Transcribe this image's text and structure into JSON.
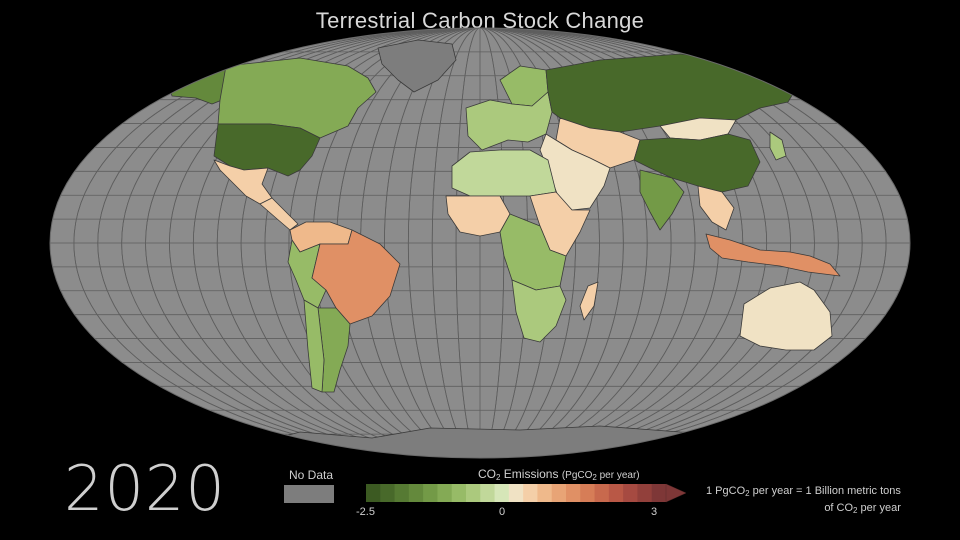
{
  "title": "Terrestrial Carbon Stock Change",
  "year": "2020",
  "legend": {
    "no_data_label": "No Data",
    "title_prefix": "CO",
    "title_sub": "2",
    "title_suffix": " Emissions ",
    "unit_prefix": "(PgCO",
    "unit_sub": "2",
    "unit_suffix": " per year)",
    "ticks": [
      "-2.5",
      "0",
      "3"
    ],
    "range": [
      -2.5,
      3
    ],
    "colors": [
      "#3c5a22",
      "#48692a",
      "#567a33",
      "#64893c",
      "#739a47",
      "#84aa55",
      "#97bb67",
      "#abc97d",
      "#c1d89a",
      "#d6e6b8",
      "#f0e2c4",
      "#f4cfa8",
      "#efb98b",
      "#e8a476",
      "#e09065",
      "#d67d57",
      "#c8694d",
      "#b95846",
      "#a64a41",
      "#92403b",
      "#7e3737"
    ]
  },
  "note": {
    "line1_prefix": "1 PgCO",
    "line1_sub": "2",
    "line1_suffix": " per year = 1 Billion metric tons",
    "line2_prefix": "of CO",
    "line2_sub": "2",
    "line2_suffix": " per year"
  },
  "colors": {
    "background": "#000000",
    "ocean": "#8c8c8c",
    "no_data": "#7d7d7d",
    "graticule": "#5e5e5e",
    "border": "#3a3a3a"
  },
  "regions": [
    {
      "name": "Canada",
      "value": -1.2
    },
    {
      "name": "Alaska",
      "value": -1.6
    },
    {
      "name": "United States",
      "value": -2.3
    },
    {
      "name": "Mexico",
      "value": 0.4
    },
    {
      "name": "Central America",
      "value": 0.5
    },
    {
      "name": "Colombia & Venezuela",
      "value": 0.7
    },
    {
      "name": "Brazil",
      "value": 1.4
    },
    {
      "name": "Peru & Bolivia",
      "value": -0.9
    },
    {
      "name": "Argentina",
      "value": -1.0
    },
    {
      "name": "Chile",
      "value": -0.8
    },
    {
      "name": "Europe",
      "value": -0.7
    },
    {
      "name": "Scandinavia",
      "value": -0.8
    },
    {
      "name": "Russia",
      "value": -2.3
    },
    {
      "name": "China",
      "value": -2.2
    },
    {
      "name": "Mongolia",
      "value": 0.3
    },
    {
      "name": "Kazakhstan & Central Asia",
      "value": 0.4
    },
    {
      "name": "Middle East",
      "value": 0.3
    },
    {
      "name": "India",
      "value": -1.3
    },
    {
      "name": "Southeast Asia",
      "value": 0.6
    },
    {
      "name": "Indonesia & Philippines",
      "value": 1.4
    },
    {
      "name": "North Africa",
      "value": -0.3
    },
    {
      "name": "West Africa",
      "value": 0.4
    },
    {
      "name": "Central Africa",
      "value": -0.9
    },
    {
      "name": "East Africa",
      "value": 0.6
    },
    {
      "name": "Southern Africa",
      "value": -0.7
    },
    {
      "name": "Madagascar",
      "value": 0.5
    },
    {
      "name": "Australia",
      "value": 0.2
    },
    {
      "name": "New Zealand",
      "value": 0.3
    },
    {
      "name": "Japan",
      "value": -0.7
    }
  ]
}
